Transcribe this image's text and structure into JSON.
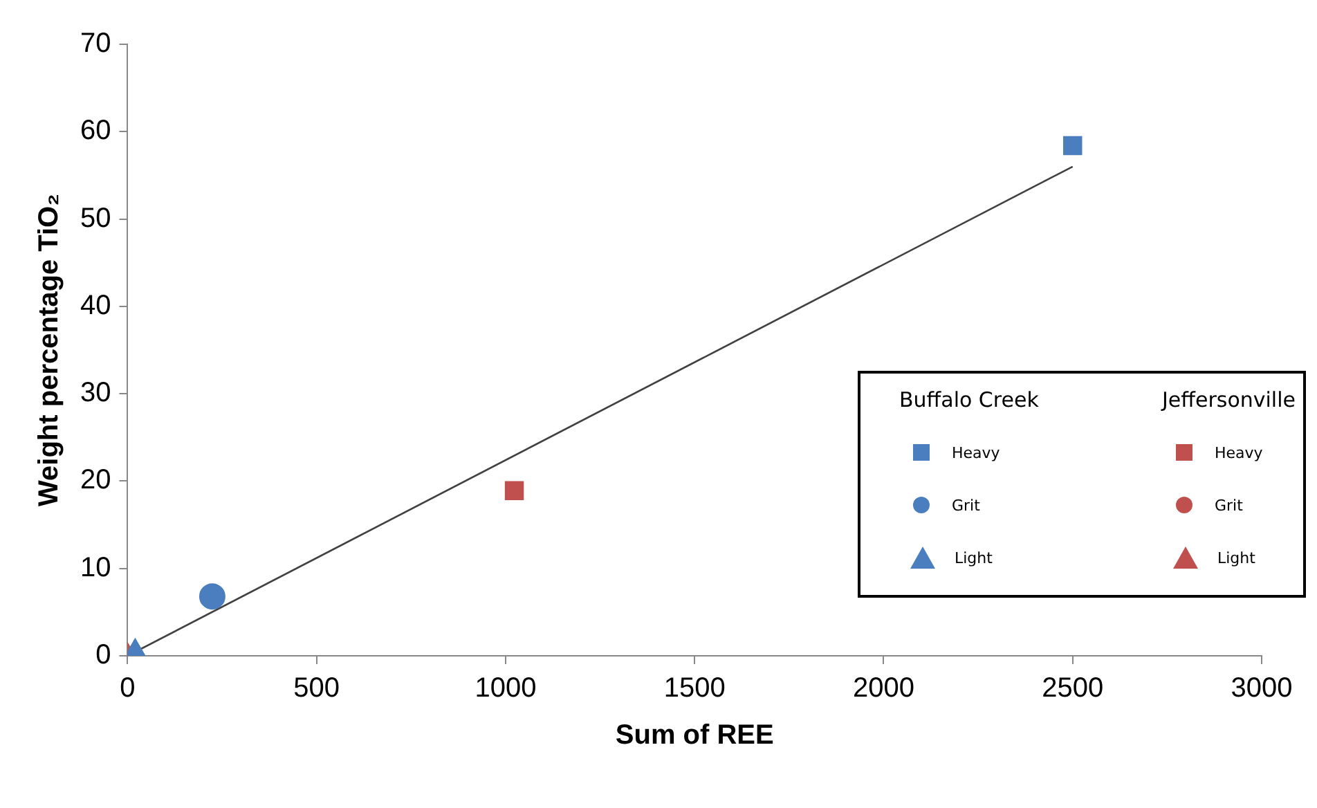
{
  "chart_data": {
    "type": "scatter",
    "xlabel": "Sum of REE",
    "ylabel": "Weight percentage TiO₂",
    "xlim": [
      0,
      3000
    ],
    "xticks": [
      0,
      500,
      1000,
      1500,
      2000,
      2500,
      3000
    ],
    "ylim": [
      0,
      70
    ],
    "yticks": [
      0,
      10,
      20,
      30,
      40,
      50,
      60,
      70
    ],
    "grid": false,
    "legend": "right",
    "legend_title": [
      "Buffalo Creek",
      "Jeffersonville"
    ],
    "series": [
      {
        "name": "Heavy",
        "color": "#4a7ebf",
        "marker": "square",
        "x": [
          2500
        ],
        "values": [
          58.4
        ]
      },
      {
        "name": "Grit",
        "color": "#4a7ebf",
        "marker": "circle",
        "x": [
          224
        ],
        "values": [
          6.8
        ]
      },
      {
        "name": "Light",
        "color": "#4a7ebf",
        "marker": "triangle",
        "x": [
          20
        ],
        "values": [
          0.5
        ]
      },
      {
        "name": "Heavy",
        "color": "#c0504d",
        "marker": "square",
        "x": [
          1023
        ],
        "values": [
          18.9
        ]
      },
      {
        "name": "Grit",
        "color": "#c0504d",
        "marker": "circle",
        "x": [
          null
        ],
        "values": [
          null
        ]
      },
      {
        "name": "Light",
        "color": "#c0504d",
        "marker": "triangle",
        "x": [
          0
        ],
        "values": [
          0
        ]
      },
      {
        "type": "line",
        "color": "#404040",
        "marker": "none",
        "x": [
          0,
          2500
        ],
        "values": [
          0,
          56
        ]
      }
    ]
  }
}
